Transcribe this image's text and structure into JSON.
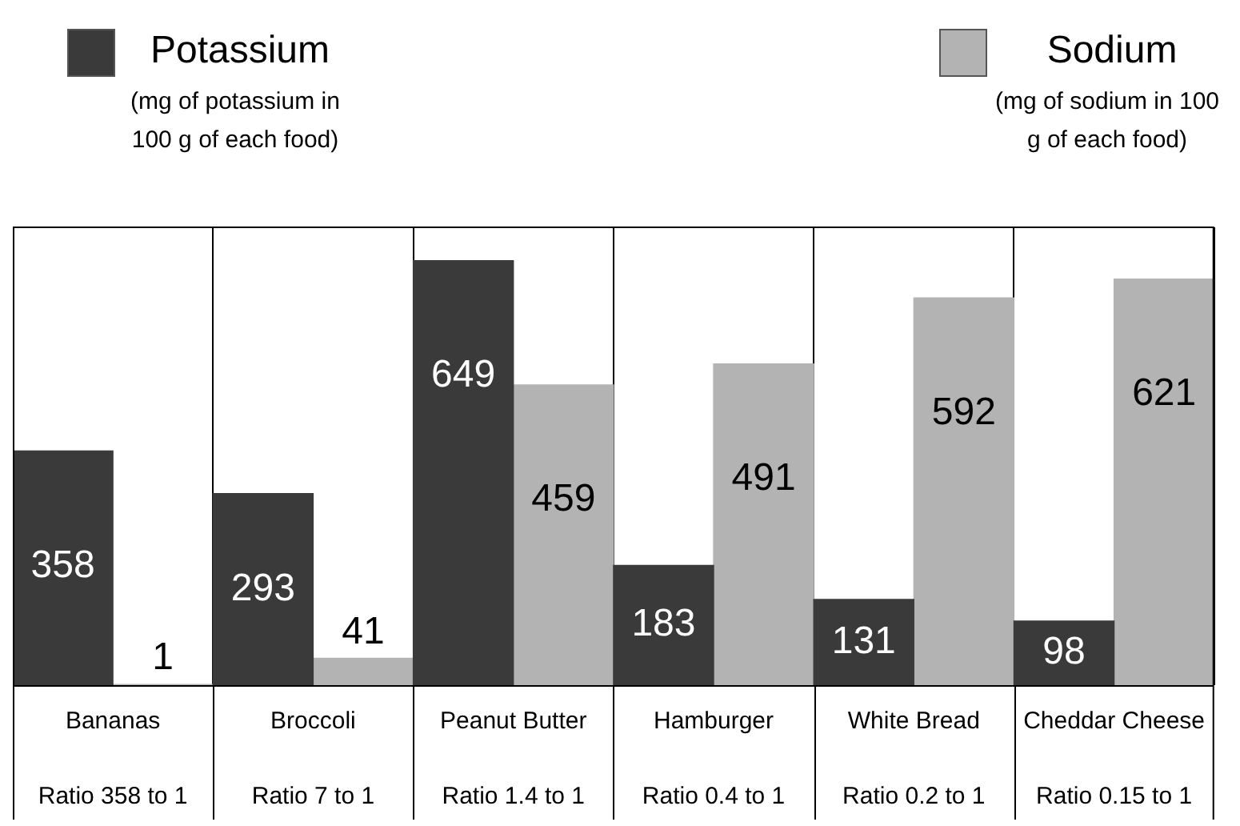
{
  "chart_data": {
    "type": "bar",
    "categories": [
      "Bananas",
      "Broccoli",
      "Peanut Butter",
      "Hamburger",
      "White Bread",
      "Cheddar Cheese"
    ],
    "series": [
      {
        "name": "Potassium",
        "color": "#3a3a3a",
        "values": [
          358,
          293,
          649,
          183,
          131,
          98
        ]
      },
      {
        "name": "Sodium",
        "color": "#b3b3b3",
        "values": [
          1,
          41,
          459,
          491,
          592,
          621
        ]
      }
    ],
    "data_labels": true,
    "legend": "top",
    "annotations": [
      "(mg of potassium in 100 g of each food)",
      "(mg of sodium in 100 g of each food)",
      "Ratio 358 to 1",
      "Ratio 7 to 1",
      "Ratio 1.4 to 1",
      "Ratio 0.4 to 1",
      "Ratio 0.2 to 1",
      "Ratio 0.15 to 1"
    ]
  }
}
